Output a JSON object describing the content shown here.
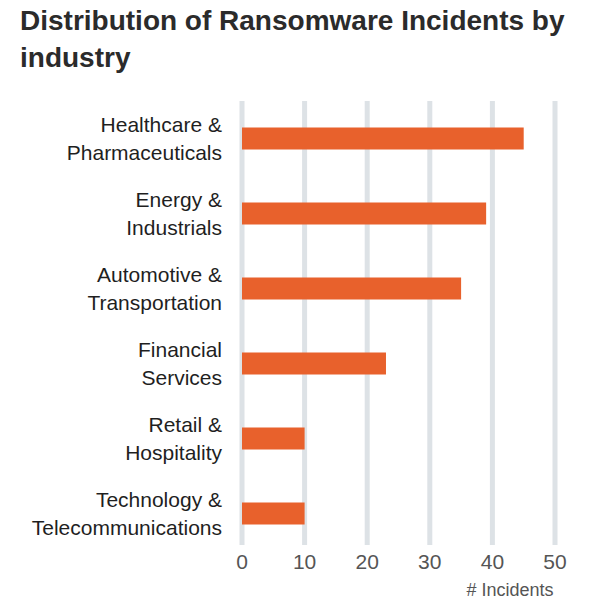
{
  "chart_data": {
    "type": "bar",
    "orientation": "horizontal",
    "title": "Distribution of Ransomware Incidents by industry",
    "categories": [
      "Healthcare & Pharmaceuticals",
      "Energy & Industrials",
      "Automotive & Transportation",
      "Financial Services",
      "Retail & Hospitality",
      "Technology & Telecommunications"
    ],
    "values": [
      45,
      39,
      35,
      23,
      10,
      10
    ],
    "color": "#e8612c",
    "xlabel": "# Incidents",
    "xlim": [
      0,
      50
    ],
    "xticks": [
      0,
      10,
      20,
      30,
      40,
      50
    ],
    "grid": true
  }
}
